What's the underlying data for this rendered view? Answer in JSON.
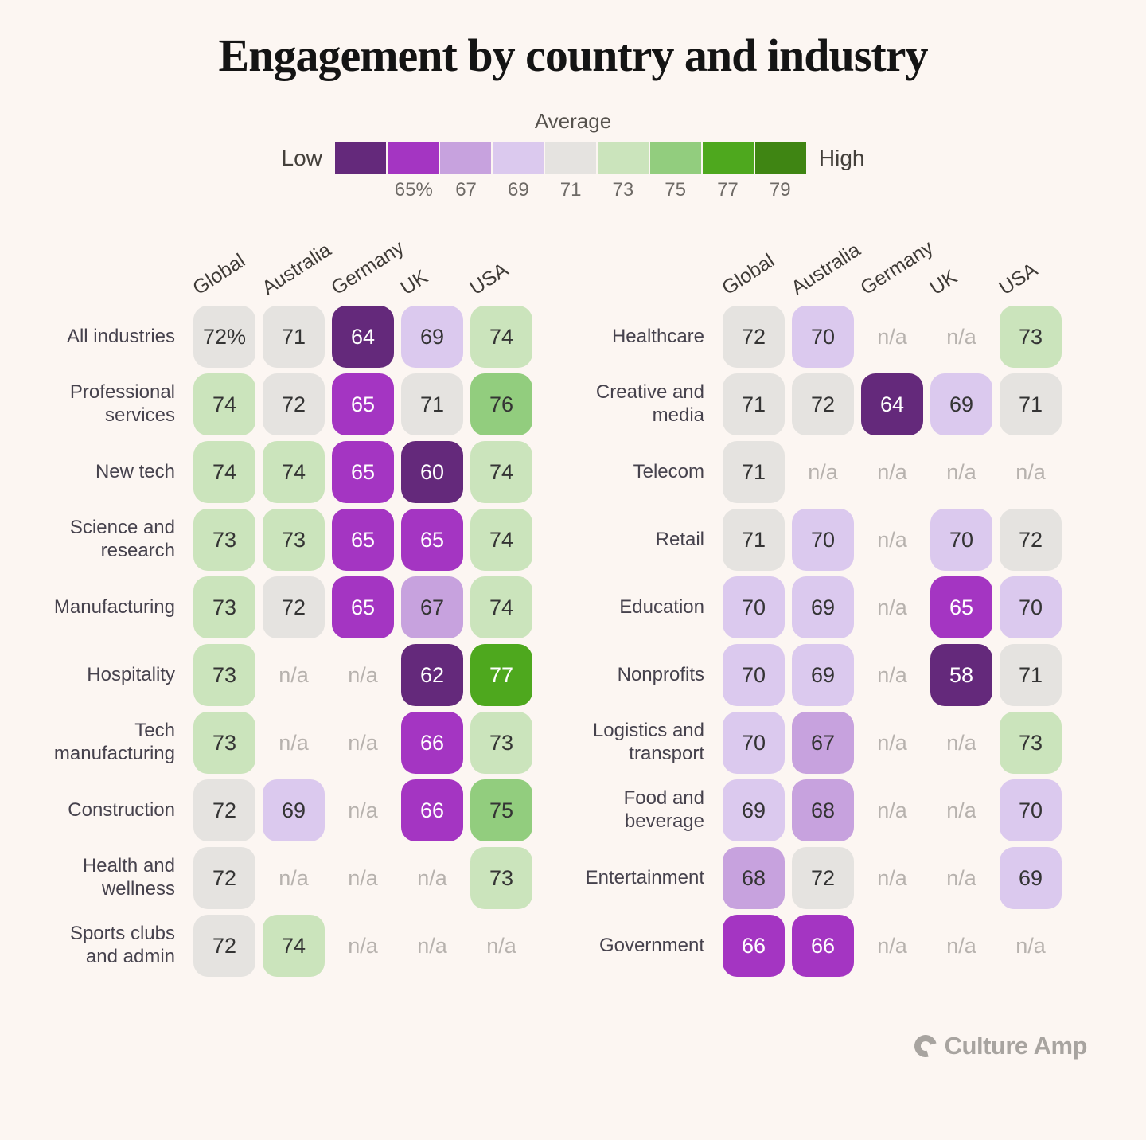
{
  "title": "Engagement by country and industry",
  "legend": {
    "title": "Average",
    "low_label": "Low",
    "high_label": "High",
    "ticks": [
      "65%",
      "67",
      "69",
      "71",
      "73",
      "75",
      "77",
      "79"
    ]
  },
  "footer": {
    "brand": "Culture Amp"
  },
  "chart_data": {
    "type": "heatmap",
    "title": "Engagement by country and industry",
    "unit": "percent engaged (favourable)",
    "columns": [
      "Global",
      "Australia",
      "Germany",
      "UK",
      "USA"
    ],
    "scale": {
      "boundaries": [
        65,
        67,
        69,
        71,
        73,
        75,
        77,
        79
      ],
      "colors": [
        "#64297b",
        "#a435c2",
        "#c7a2de",
        "#dbc9ee",
        "#e5e3e0",
        "#cbe4bc",
        "#92cd7e",
        "#4ea81e",
        "#3f8513"
      ],
      "text_dark": "#343434",
      "text_light": "#ffffff",
      "na_color": "#b7b2ae",
      "low_is_purple": true,
      "high_is_green": true
    },
    "tables": [
      {
        "name": "left",
        "rows": [
          {
            "label": "All industries",
            "values": [
              "72%",
              "71",
              "64",
              "69",
              "74"
            ]
          },
          {
            "label": "Professional services",
            "values": [
              "74",
              "72",
              "65",
              "71",
              "76"
            ]
          },
          {
            "label": "New tech",
            "values": [
              "74",
              "74",
              "65",
              "60",
              "74"
            ]
          },
          {
            "label": "Science and research",
            "values": [
              "73",
              "73",
              "65",
              "65",
              "74"
            ]
          },
          {
            "label": "Manufacturing",
            "values": [
              "73",
              "72",
              "65",
              "67",
              "74"
            ]
          },
          {
            "label": "Hospitality",
            "values": [
              "73",
              "n/a",
              "n/a",
              "62",
              "77"
            ]
          },
          {
            "label": "Tech manufacturing",
            "values": [
              "73",
              "n/a",
              "n/a",
              "66",
              "73"
            ]
          },
          {
            "label": "Construction",
            "values": [
              "72",
              "69",
              "n/a",
              "66",
              "75"
            ]
          },
          {
            "label": "Health and wellness",
            "values": [
              "72",
              "n/a",
              "n/a",
              "n/a",
              "73"
            ]
          },
          {
            "label": "Sports clubs and admin",
            "values": [
              "72",
              "74",
              "n/a",
              "n/a",
              "n/a"
            ]
          }
        ]
      },
      {
        "name": "right",
        "rows": [
          {
            "label": "Healthcare",
            "values": [
              "72",
              "70",
              "n/a",
              "n/a",
              "73"
            ]
          },
          {
            "label": "Creative and media",
            "values": [
              "71",
              "72",
              "64",
              "69",
              "71"
            ]
          },
          {
            "label": "Telecom",
            "values": [
              "71",
              "n/a",
              "n/a",
              "n/a",
              "n/a"
            ]
          },
          {
            "label": "Retail",
            "values": [
              "71",
              "70",
              "n/a",
              "70",
              "72"
            ]
          },
          {
            "label": "Education",
            "values": [
              "70",
              "69",
              "n/a",
              "65",
              "70"
            ]
          },
          {
            "label": "Nonprofits",
            "values": [
              "70",
              "69",
              "n/a",
              "58",
              "71"
            ]
          },
          {
            "label": "Logistics and transport",
            "values": [
              "70",
              "67",
              "n/a",
              "n/a",
              "73"
            ]
          },
          {
            "label": "Food and beverage",
            "values": [
              "69",
              "68",
              "n/a",
              "n/a",
              "70"
            ]
          },
          {
            "label": "Entertainment",
            "values": [
              "68",
              "72",
              "n/a",
              "n/a",
              "69"
            ]
          },
          {
            "label": "Government",
            "values": [
              "66",
              "66",
              "n/a",
              "n/a",
              "n/a"
            ]
          }
        ]
      }
    ]
  }
}
